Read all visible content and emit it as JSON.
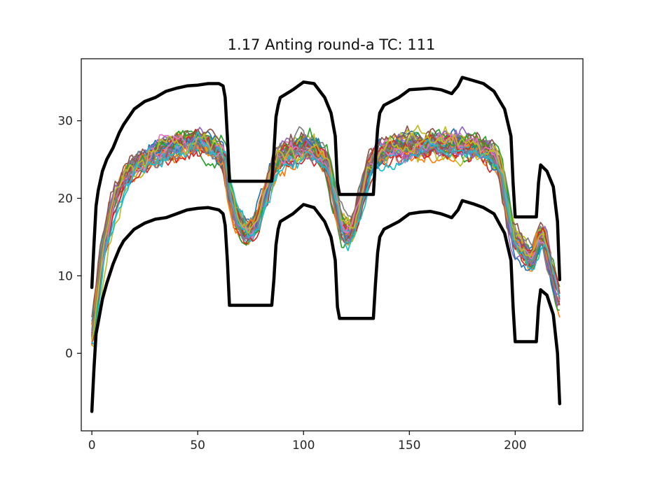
{
  "chart_data": {
    "type": "line",
    "title": "1.17 Anting round-a TC: 111",
    "xlabel": "",
    "ylabel": "",
    "xlim": [
      -5,
      232
    ],
    "ylim": [
      -10,
      38
    ],
    "x_ticks": [
      0,
      50,
      100,
      150,
      200
    ],
    "y_ticks": [
      0,
      10,
      20,
      30
    ],
    "x_tick_labels": [
      "0",
      "50",
      "100",
      "150",
      "200"
    ],
    "y_tick_labels": [
      "0",
      "10",
      "20",
      "30"
    ],
    "grid": false,
    "legend": "none",
    "envelope_color": "#000000",
    "trace_colors": [
      "#1f77b4",
      "#ff7f0e",
      "#2ca02c",
      "#d62728",
      "#9467bd",
      "#8c564b",
      "#e377c2",
      "#7f7f7f",
      "#bcbd22",
      "#17becf"
    ],
    "trace_count": 40,
    "mean_profile": {
      "x": [
        0,
        2,
        5,
        10,
        15,
        20,
        25,
        30,
        35,
        40,
        45,
        50,
        55,
        60,
        63,
        65,
        68,
        70,
        72,
        75,
        78,
        80,
        83,
        85,
        88,
        90,
        95,
        100,
        105,
        110,
        113,
        115,
        118,
        120,
        123,
        125,
        128,
        130,
        133,
        135,
        138,
        140,
        145,
        150,
        155,
        160,
        165,
        170,
        175,
        180,
        185,
        190,
        193,
        195,
        198,
        200,
        203,
        205,
        207,
        209,
        211,
        213,
        215,
        217,
        219,
        221
      ],
      "y": [
        2,
        6,
        13,
        19,
        22.5,
        24,
        25,
        25.8,
        26.3,
        26.8,
        27.2,
        27.3,
        26.8,
        26,
        25,
        21,
        17.5,
        16.5,
        15.8,
        16,
        17,
        19,
        21.5,
        23.5,
        25,
        25.5,
        26.3,
        26.5,
        26.2,
        25,
        22.5,
        19.5,
        16.5,
        15.5,
        16,
        17.5,
        21,
        23.5,
        25,
        25.5,
        26,
        26.2,
        26.5,
        26.6,
        26.7,
        26.8,
        26.9,
        26.9,
        26.8,
        26.6,
        26.2,
        25.5,
        24,
        21,
        16.5,
        14.5,
        14,
        13,
        12,
        12.5,
        14.5,
        15,
        13.5,
        11,
        9,
        7
      ]
    },
    "series": [
      {
        "x": [
          0,
          1,
          2,
          3,
          5,
          7,
          10,
          13,
          15,
          20,
          25,
          30,
          35,
          40,
          45,
          50,
          55,
          60,
          62,
          63,
          64,
          65,
          75,
          85,
          86,
          87,
          88,
          89,
          95,
          100,
          105,
          110,
          113,
          115,
          116,
          117,
          125,
          133,
          134,
          135,
          136,
          138,
          145,
          150,
          155,
          160,
          165,
          170,
          173,
          175,
          180,
          185,
          190,
          195,
          198,
          199,
          200,
          205,
          210,
          211,
          212,
          215,
          218,
          220,
          221
        ],
        "y": [
          8.5,
          14,
          19,
          21,
          23.5,
          25,
          26.5,
          28.5,
          29.5,
          31.5,
          32.5,
          33,
          33.8,
          34.2,
          34.5,
          34.6,
          34.8,
          34.8,
          34.5,
          33,
          28,
          22.2,
          22.2,
          22.2,
          26,
          30.5,
          32,
          33,
          34,
          35,
          34.8,
          33,
          31,
          28,
          22,
          20.5,
          20.5,
          20.5,
          25,
          29,
          31,
          32,
          33,
          34,
          34.1,
          34.2,
          34,
          33.5,
          34.5,
          35.6,
          35.2,
          34.8,
          33.8,
          31.5,
          28,
          22,
          17.6,
          17.6,
          17.6,
          22,
          24.3,
          23.5,
          21.5,
          17,
          9.5
        ]
      },
      {
        "x": [
          0,
          1,
          2,
          3,
          5,
          7,
          10,
          13,
          15,
          20,
          25,
          30,
          35,
          40,
          45,
          50,
          55,
          60,
          62,
          63,
          64,
          65,
          75,
          85,
          86,
          87,
          88,
          89,
          95,
          100,
          105,
          110,
          113,
          115,
          116,
          117,
          125,
          133,
          134,
          135,
          136,
          138,
          145,
          150,
          155,
          160,
          165,
          170,
          173,
          175,
          180,
          185,
          190,
          195,
          198,
          199,
          200,
          205,
          210,
          211,
          212,
          215,
          218,
          220,
          221
        ],
        "y": [
          -7.5,
          -2,
          2.5,
          4,
          7,
          9,
          11.5,
          13.5,
          14.5,
          16,
          16.8,
          17.3,
          17.5,
          18,
          18.5,
          18.7,
          18.8,
          18.5,
          18,
          16.5,
          12,
          6.2,
          6.2,
          6.2,
          9.5,
          14,
          16,
          17,
          18,
          19.2,
          18.8,
          17,
          15,
          12,
          6,
          4.5,
          4.5,
          4.5,
          9,
          13,
          15,
          16,
          17,
          18,
          18.2,
          18.3,
          18,
          17.5,
          18.5,
          19.7,
          19.3,
          18.8,
          18,
          15.5,
          12,
          6,
          1.5,
          1.5,
          1.5,
          6,
          8.2,
          7.5,
          5,
          0,
          -6.5
        ]
      }
    ]
  }
}
